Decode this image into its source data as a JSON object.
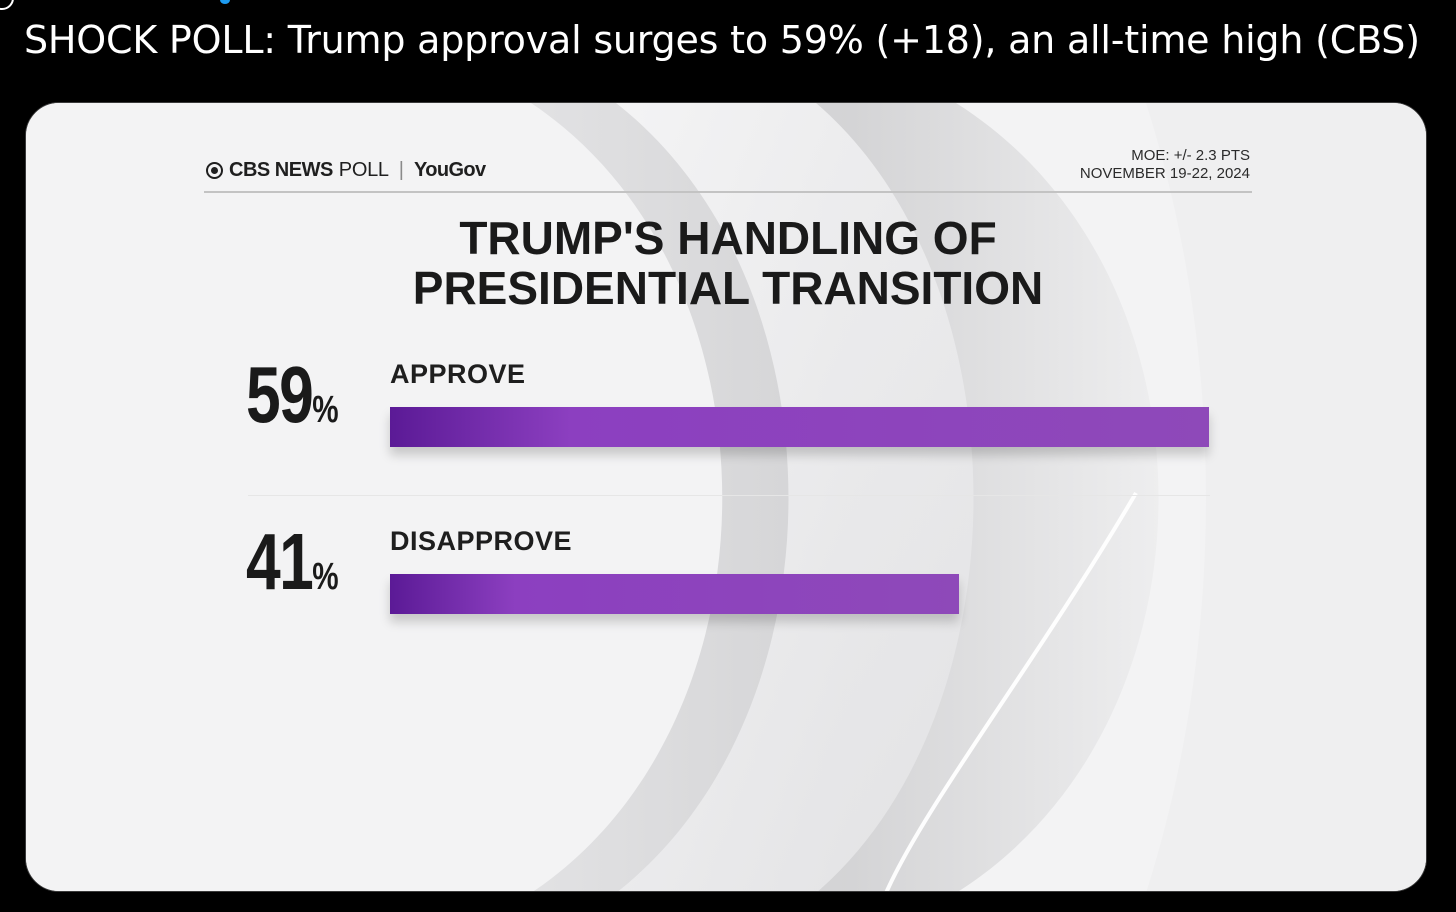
{
  "tweet": {
    "text": "SHOCK POLL: Trump approval surges to 59% (+18), an all-time high (CBS)"
  },
  "graphic": {
    "brand": {
      "network": "CBS NEWS",
      "poll_word": "POLL",
      "partner": "YouGov"
    },
    "meta": {
      "moe": "MOE: +/- 2.3 PTS",
      "dates": "NOVEMBER 19-22, 2024"
    },
    "headline_line1": "TRUMP'S HANDLING OF",
    "headline_line2": "PRESIDENTIAL TRANSITION",
    "colors": {
      "bar_start": "#5b1a96",
      "bar_end": "#8e49b9",
      "card_bg": "#f4f4f5"
    }
  },
  "chart_data": {
    "type": "bar",
    "orientation": "horizontal",
    "title": "TRUMP'S HANDLING OF PRESIDENTIAL TRANSITION",
    "categories": [
      "APPROVE",
      "DISAPPROVE"
    ],
    "values": [
      59,
      41
    ],
    "value_labels": [
      "59",
      "41"
    ],
    "unit": "%",
    "xlim": [
      0,
      59
    ],
    "grid": false
  }
}
